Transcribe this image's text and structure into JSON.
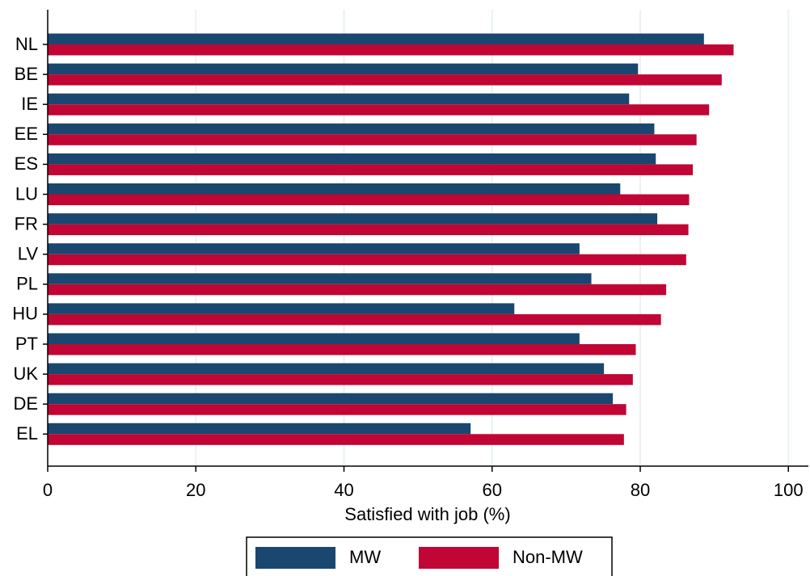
{
  "chart_data": {
    "type": "barh",
    "xlabel": "Satisfied with job (%)",
    "categories": [
      "NL",
      "BE",
      "IE",
      "EE",
      "ES",
      "LU",
      "FR",
      "LV",
      "PL",
      "HU",
      "PT",
      "UK",
      "DE",
      "EL"
    ],
    "series": [
      {
        "name": "MW",
        "color": "#1a476f",
        "values": [
          88.6,
          79.7,
          78.5,
          81.9,
          82.1,
          77.3,
          82.3,
          71.8,
          73.4,
          63.0,
          71.8,
          75.1,
          76.3,
          57.1
        ]
      },
      {
        "name": "Non-MW",
        "color": "#c10534",
        "values": [
          92.6,
          91.0,
          89.3,
          87.6,
          87.1,
          86.6,
          86.5,
          86.2,
          83.5,
          82.8,
          79.4,
          79.0,
          78.1,
          77.8
        ]
      }
    ],
    "xlim": [
      0,
      102.7
    ],
    "xticks": [
      0,
      20,
      40,
      60,
      80,
      100
    ],
    "grid": true,
    "legend": "bottom"
  }
}
